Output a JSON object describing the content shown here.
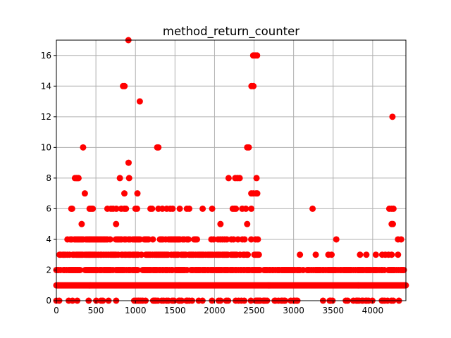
{
  "chart_data": {
    "type": "scatter",
    "title": "method_return_counter",
    "xlabel": "",
    "ylabel": "",
    "xlim": [
      0,
      4420
    ],
    "ylim": [
      0,
      17
    ],
    "xticks": [
      0,
      500,
      1000,
      1500,
      2000,
      2500,
      3000,
      3500,
      4000
    ],
    "yticks": [
      0,
      2,
      4,
      6,
      8,
      10,
      12,
      14,
      16
    ],
    "grid": true,
    "marker_color": "#ff0000",
    "series": [
      {
        "points": [
          [
            843,
            14
          ],
          [
            862,
            14
          ],
          [
            911,
            17
          ],
          [
            1055,
            13
          ],
          [
            2467,
            14
          ],
          [
            2492,
            14
          ],
          [
            2489,
            16
          ],
          [
            2513,
            16
          ],
          [
            2538,
            16
          ],
          [
            338,
            10
          ],
          [
            1275,
            10
          ],
          [
            1290,
            10
          ],
          [
            2413,
            10
          ],
          [
            2433,
            10
          ],
          [
            4250,
            12
          ],
          [
            913,
            9
          ],
          [
            235,
            8
          ],
          [
            254,
            8
          ],
          [
            265,
            8
          ],
          [
            280,
            8
          ],
          [
            803,
            8
          ],
          [
            920,
            8
          ],
          [
            2178,
            8
          ],
          [
            2262,
            8
          ],
          [
            2290,
            8
          ],
          [
            2318,
            8
          ],
          [
            2531,
            8
          ],
          [
            360,
            7
          ],
          [
            860,
            7
          ],
          [
            1025,
            7
          ],
          [
            2465,
            7
          ],
          [
            2525,
            7
          ],
          [
            2540,
            7
          ],
          [
            189,
            6
          ],
          [
            199,
            6
          ],
          [
            420,
            6
          ],
          [
            440,
            6
          ],
          [
            460,
            6
          ],
          [
            645,
            6
          ],
          [
            690,
            6
          ],
          [
            717,
            6
          ],
          [
            758,
            6
          ],
          [
            820,
            6
          ],
          [
            860,
            6
          ],
          [
            880,
            6
          ],
          [
            1000,
            6
          ],
          [
            1020,
            6
          ],
          [
            1190,
            6
          ],
          [
            1210,
            6
          ],
          [
            1290,
            6
          ],
          [
            1340,
            6
          ],
          [
            1395,
            6
          ],
          [
            1440,
            6
          ],
          [
            1470,
            6
          ],
          [
            1560,
            6
          ],
          [
            1650,
            6
          ],
          [
            1680,
            6
          ],
          [
            1850,
            6
          ],
          [
            1970,
            6
          ],
          [
            2230,
            6
          ],
          [
            2250,
            6
          ],
          [
            2270,
            6
          ],
          [
            2350,
            6
          ],
          [
            2396,
            6
          ],
          [
            2465,
            6
          ],
          [
            3240,
            6
          ],
          [
            4210,
            6
          ],
          [
            4240,
            6
          ],
          [
            4263,
            6
          ],
          [
            320,
            5
          ],
          [
            755,
            5
          ],
          [
            2075,
            5
          ],
          [
            2413,
            5
          ],
          [
            4240,
            5
          ],
          [
            4255,
            5
          ],
          [
            2490,
            7
          ]
        ]
      }
    ]
  }
}
